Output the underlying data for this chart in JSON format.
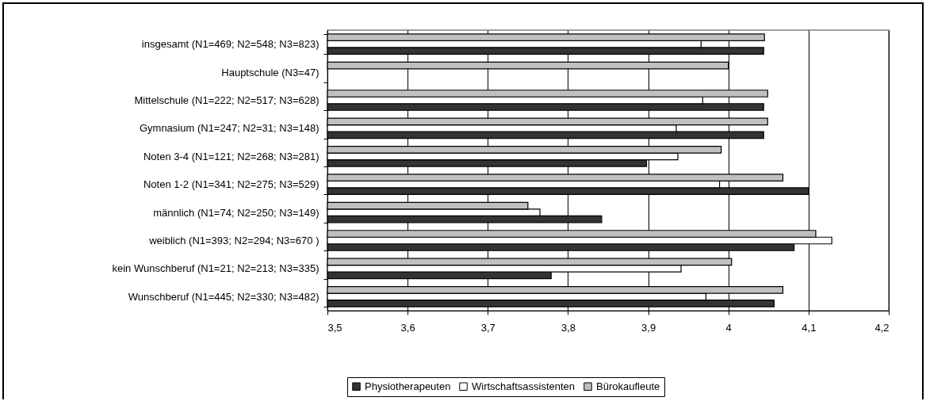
{
  "chart_data": {
    "type": "bar",
    "orientation": "horizontal",
    "categories": [
      "insgesamt (N1=469; N2=548; N3=823)",
      "Hauptschule (N3=47)",
      "Mittelschule (N1=222; N2=517; N3=628)",
      "Gymnasium (N1=247; N2=31; N3=148)",
      "Noten 3-4 (N1=121; N2=268; N3=281)",
      "Noten 1-2 (N1=341; N2=275; N3=529)",
      "männlich (N1=74; N2=250; N3=149)",
      "weiblich (N1=393; N2=294; N3=670 )",
      "kein Wunschberuf (N1=21; N2=213; N3=335)",
      "Wunschberuf (N1=445; N2=330; N3=482)"
    ],
    "series": [
      {
        "name": "Physiotherapeuten",
        "color": "#333333",
        "values": [
          4.044,
          null,
          4.044,
          4.044,
          3.898,
          4.1,
          3.842,
          4.082,
          3.779,
          4.057
        ]
      },
      {
        "name": "Wirtschaftsassistenten",
        "color": "#ffffff",
        "values": [
          3.966,
          null,
          3.968,
          3.935,
          3.937,
          3.989,
          3.765,
          4.129,
          3.941,
          3.972
        ]
      },
      {
        "name": "Bürokaufleute",
        "color": "#c0c0c0",
        "values": [
          4.045,
          4.0,
          4.049,
          4.049,
          3.991,
          4.068,
          3.75,
          4.109,
          4.004,
          4.068
        ]
      }
    ],
    "xlim": [
      3.5,
      4.2
    ],
    "xticks": [
      {
        "value": 3.5,
        "label": "3,5"
      },
      {
        "value": 3.6,
        "label": "3,6"
      },
      {
        "value": 3.7,
        "label": "3,7"
      },
      {
        "value": 3.8,
        "label": "3,8"
      },
      {
        "value": 3.9,
        "label": "3,9"
      },
      4,
      {
        "value": 4.1,
        "label": "4,1"
      },
      {
        "value": 4.2,
        "label": "4,2"
      }
    ],
    "grid": "x",
    "legend": "bottom"
  }
}
